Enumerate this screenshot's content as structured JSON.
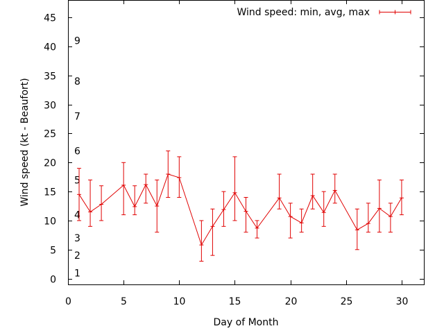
{
  "chart_data": {
    "type": "line",
    "title": "",
    "xlabel": "Day of Month",
    "ylabel": "Wind speed (kt - Beaufort)",
    "xlim": [
      0,
      32
    ],
    "ylim": [
      -1,
      48
    ],
    "xticks": [
      0,
      5,
      10,
      15,
      20,
      25,
      30
    ],
    "yticks": [
      0,
      5,
      10,
      15,
      20,
      25,
      30,
      35,
      40,
      45
    ],
    "grid": false,
    "legend": "top-right",
    "color": "#e00000",
    "beaufort_labels": [
      {
        "label": "1",
        "y": 1
      },
      {
        "label": "2",
        "y": 4
      },
      {
        "label": "3",
        "y": 7
      },
      {
        "label": "4",
        "y": 11
      },
      {
        "label": "5",
        "y": 17
      },
      {
        "label": "6",
        "y": 22
      },
      {
        "label": "7",
        "y": 28
      },
      {
        "label": "8",
        "y": 34
      },
      {
        "label": "9",
        "y": 41
      }
    ],
    "series": [
      {
        "name": "Wind speed: min, avg, max",
        "points": [
          {
            "x": 1,
            "min": 10,
            "avg": 14.5,
            "max": 19
          },
          {
            "x": 2,
            "min": 9,
            "avg": 11.5,
            "max": 17
          },
          {
            "x": 3,
            "min": 10,
            "avg": 12.8,
            "max": 16
          },
          {
            "x": 5,
            "min": 11,
            "avg": 16.1,
            "max": 20
          },
          {
            "x": 6,
            "min": 11,
            "avg": 12.4,
            "max": 16
          },
          {
            "x": 7,
            "min": 13,
            "avg": 16.2,
            "max": 18
          },
          {
            "x": 8,
            "min": 8,
            "avg": 12.5,
            "max": 17
          },
          {
            "x": 9,
            "min": 14,
            "avg": 18.0,
            "max": 22
          },
          {
            "x": 10,
            "min": 14,
            "avg": 17.4,
            "max": 21
          },
          {
            "x": 12,
            "min": 3,
            "avg": 5.8,
            "max": 10
          },
          {
            "x": 13,
            "min": 4,
            "avg": 9.0,
            "max": 12
          },
          {
            "x": 14,
            "min": 9,
            "avg": 11.9,
            "max": 15
          },
          {
            "x": 15,
            "min": 10,
            "avg": 14.8,
            "max": 21
          },
          {
            "x": 16,
            "min": 8,
            "avg": 11.6,
            "max": 14
          },
          {
            "x": 17,
            "min": 7,
            "avg": 8.7,
            "max": 10
          },
          {
            "x": 19,
            "min": 12,
            "avg": 13.9,
            "max": 18
          },
          {
            "x": 20,
            "min": 7,
            "avg": 10.7,
            "max": 13
          },
          {
            "x": 21,
            "min": 8,
            "avg": 9.6,
            "max": 12
          },
          {
            "x": 22,
            "min": 12,
            "avg": 14.3,
            "max": 18
          },
          {
            "x": 23,
            "min": 9,
            "avg": 11.4,
            "max": 15
          },
          {
            "x": 24,
            "min": 13,
            "avg": 15.2,
            "max": 18
          },
          {
            "x": 26,
            "min": 5,
            "avg": 8.4,
            "max": 12
          },
          {
            "x": 27,
            "min": 8,
            "avg": 9.5,
            "max": 13
          },
          {
            "x": 28,
            "min": 8,
            "avg": 12.1,
            "max": 17
          },
          {
            "x": 29,
            "min": 8,
            "avg": 10.7,
            "max": 13
          },
          {
            "x": 30,
            "min": 11,
            "avg": 13.9,
            "max": 17
          }
        ]
      }
    ]
  }
}
